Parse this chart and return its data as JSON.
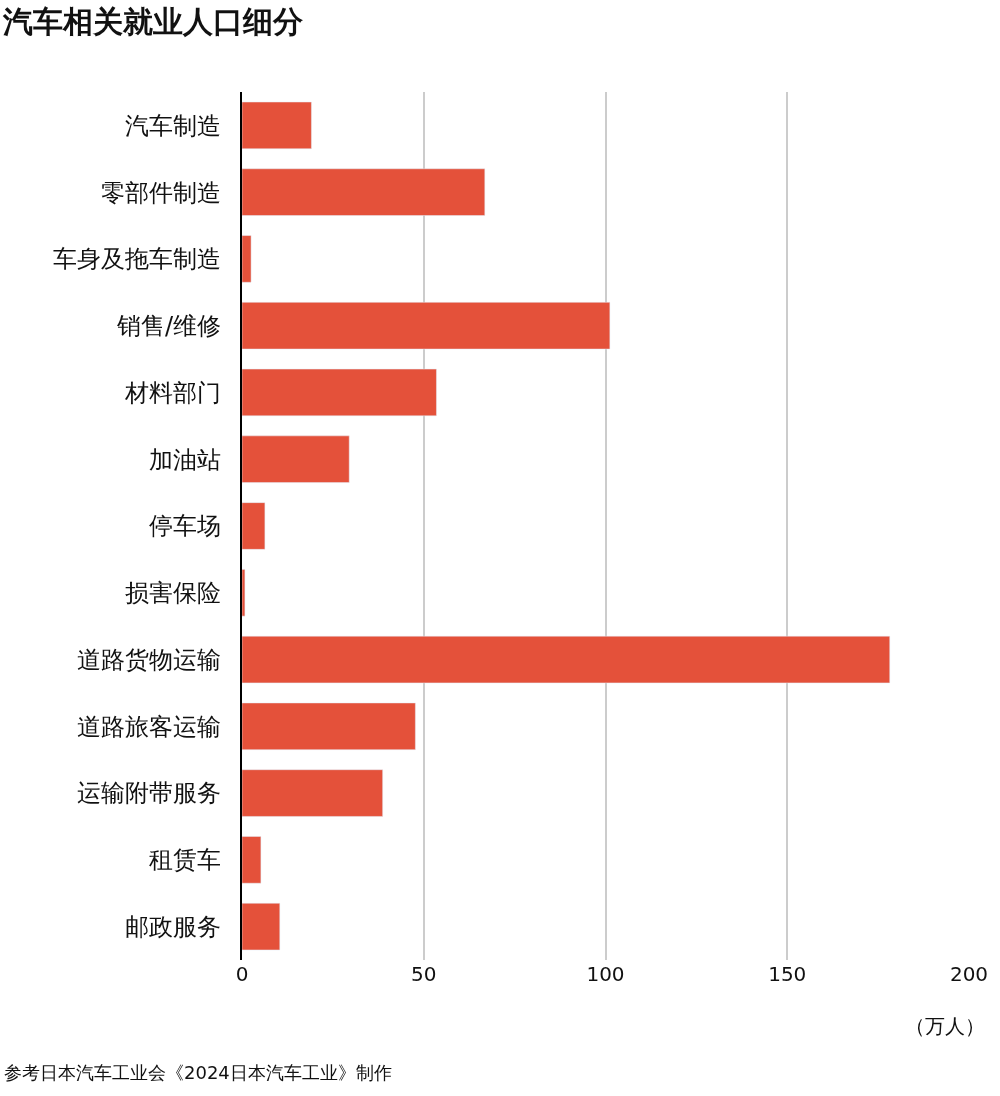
{
  "chart_data": {
    "type": "bar",
    "orientation": "horizontal",
    "title": "汽车相关就业人口细分",
    "categories": [
      "汽车制造",
      "零部件制造",
      "车身及拖车制造",
      "销售/维修",
      "材料部门",
      "加油站",
      "停车场",
      "损害保险",
      "道路货物运输",
      "道路旅客运输",
      "运输附带服务",
      "租赁车",
      "邮政服务"
    ],
    "values": [
      19.1,
      66.8,
      2.5,
      101.2,
      53.5,
      29.5,
      6.3,
      0.8,
      178.2,
      47.7,
      38.7,
      5.2,
      10.4
    ],
    "color": "#e4513a",
    "xlim": [
      0,
      200
    ],
    "xticks": [
      0,
      50,
      100,
      150,
      200
    ],
    "xlabel": "（万人）",
    "grid": "x",
    "annotations": [
      "参考日本汽车工业会《2024日本汽车工业》制作"
    ]
  }
}
